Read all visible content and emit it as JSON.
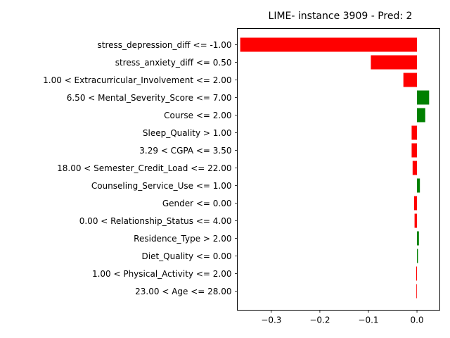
{
  "chart_data": {
    "type": "bar",
    "orientation": "horizontal",
    "title": "LIME- instance 3909 - Pred: 2",
    "xlabel": "",
    "ylabel": "",
    "xlim": [
      -0.37,
      0.047
    ],
    "xticks": [
      -0.3,
      -0.2,
      -0.1,
      0.0
    ],
    "xtick_labels": [
      "−0.3",
      "−0.2",
      "−0.1",
      "0.0"
    ],
    "grid": false,
    "legend": "none",
    "colors": {
      "positive": "#008000",
      "negative": "#ff0000"
    },
    "categories": [
      "stress_depression_diff <= -1.00",
      "stress_anxiety_diff <= 0.50",
      "1.00 < Extracurricular_Involvement <= 2.00",
      "6.50 < Mental_Severity_Score <= 7.00",
      "Course <= 2.00",
      "Sleep_Quality > 1.00",
      "3.29 < CGPA <= 3.50",
      "18.00 < Semester_Credit_Load <= 22.00",
      "Counseling_Service_Use <= 1.00",
      "Gender <= 0.00",
      "0.00 < Relationship_Status <= 4.00",
      "Residence_Type > 2.00",
      "Diet_Quality <= 0.00",
      "1.00 < Physical_Activity <= 2.00",
      "23.00 < Age <= 28.00"
    ],
    "values": [
      -0.364,
      -0.095,
      -0.028,
      0.025,
      0.017,
      -0.011,
      -0.011,
      -0.009,
      0.006,
      -0.006,
      -0.005,
      0.004,
      0.002,
      -0.0015,
      -0.0012
    ]
  }
}
